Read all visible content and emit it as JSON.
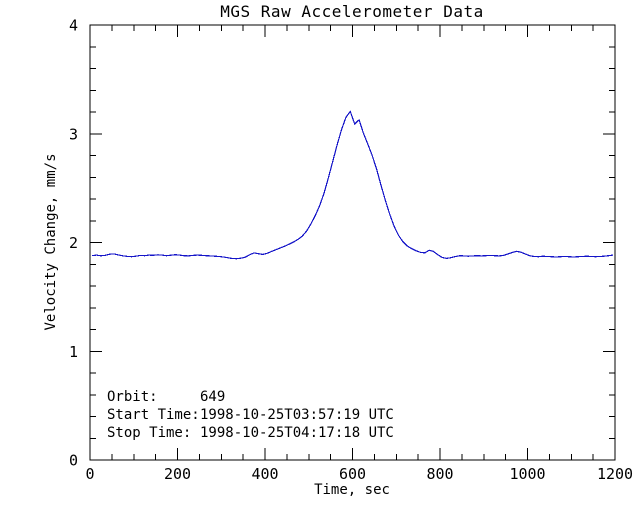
{
  "page": {
    "background_color": "#ffffff",
    "text_color": "#000000"
  },
  "annotations": {
    "orbit_label": "Orbit:",
    "orbit_value": "649",
    "start_label": "Start Time:",
    "start_value": "1998-10-25T03:57:19 UTC",
    "stop_label": "Stop Time:",
    "stop_value": "1998-10-25T04:17:18 UTC"
  },
  "chart_data": {
    "type": "line",
    "title": "MGS Raw Accelerometer Data",
    "xlabel": "Time, sec",
    "ylabel": "Velocity Change, mm/s",
    "xlim": [
      0,
      1200
    ],
    "ylim": [
      0,
      4
    ],
    "x_major_ticks": [
      0,
      200,
      400,
      600,
      800,
      1000,
      1200
    ],
    "x_minor_step": 50,
    "y_major_ticks": [
      0,
      1,
      2,
      3,
      4
    ],
    "y_minor_step": 0.2,
    "grid": false,
    "legend": "none",
    "line_color": "#1414c8",
    "annotation_lines": [
      "Orbit:      649",
      "Start Time: 1998-10-25T03:57:19 UTC",
      "Stop Time:  1998-10-25T04:17:18 UTC"
    ],
    "series": [
      {
        "name": "velocity_change_mm_s",
        "x": [
          5,
          15,
          25,
          35,
          45,
          55,
          65,
          75,
          85,
          95,
          105,
          115,
          125,
          135,
          145,
          155,
          165,
          175,
          185,
          195,
          205,
          215,
          225,
          235,
          245,
          255,
          265,
          275,
          285,
          295,
          305,
          315,
          325,
          335,
          345,
          355,
          365,
          375,
          385,
          395,
          405,
          415,
          425,
          435,
          445,
          455,
          465,
          475,
          485,
          495,
          505,
          515,
          525,
          535,
          545,
          555,
          565,
          575,
          585,
          595,
          605,
          615,
          625,
          635,
          645,
          655,
          665,
          675,
          685,
          695,
          705,
          715,
          725,
          735,
          745,
          755,
          765,
          775,
          785,
          795,
          805,
          815,
          825,
          835,
          845,
          855,
          865,
          875,
          885,
          895,
          905,
          915,
          925,
          935,
          945,
          955,
          965,
          975,
          985,
          995,
          1005,
          1015,
          1025,
          1035,
          1045,
          1055,
          1065,
          1075,
          1085,
          1095,
          1105,
          1115,
          1125,
          1135,
          1145,
          1155,
          1165,
          1175,
          1185,
          1195
        ],
        "y": [
          1.88,
          1.884,
          1.878,
          1.882,
          1.892,
          1.894,
          1.886,
          1.878,
          1.872,
          1.869,
          1.874,
          1.881,
          1.879,
          1.884,
          1.882,
          1.887,
          1.884,
          1.879,
          1.883,
          1.888,
          1.884,
          1.879,
          1.877,
          1.881,
          1.884,
          1.882,
          1.879,
          1.877,
          1.874,
          1.871,
          1.867,
          1.86,
          1.853,
          1.851,
          1.856,
          1.865,
          1.888,
          1.904,
          1.897,
          1.891,
          1.901,
          1.918,
          1.934,
          1.95,
          1.966,
          1.984,
          2.004,
          2.028,
          2.058,
          2.105,
          2.17,
          2.248,
          2.34,
          2.455,
          2.595,
          2.748,
          2.9,
          3.04,
          3.15,
          3.205,
          3.09,
          3.128,
          3.005,
          2.905,
          2.8,
          2.675,
          2.53,
          2.39,
          2.26,
          2.15,
          2.068,
          2.008,
          1.968,
          1.944,
          1.925,
          1.91,
          1.904,
          1.928,
          1.918,
          1.888,
          1.862,
          1.854,
          1.86,
          1.87,
          1.879,
          1.877,
          1.874,
          1.877,
          1.879,
          1.877,
          1.879,
          1.881,
          1.879,
          1.877,
          1.881,
          1.894,
          1.908,
          1.919,
          1.911,
          1.894,
          1.879,
          1.871,
          1.869,
          1.874,
          1.871,
          1.869,
          1.867,
          1.869,
          1.871,
          1.869,
          1.867,
          1.869,
          1.871,
          1.874,
          1.871,
          1.869,
          1.871,
          1.874,
          1.879,
          1.884
        ]
      }
    ]
  }
}
